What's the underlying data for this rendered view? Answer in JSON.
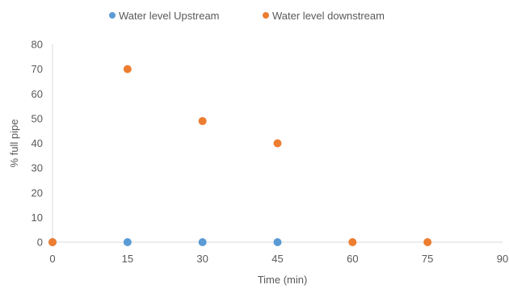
{
  "chart_data": {
    "type": "scatter",
    "title": "",
    "xlabel": "Time (min)",
    "ylabel": "% full pipe",
    "xlim": [
      0,
      90
    ],
    "ylim": [
      0,
      80
    ],
    "x_ticks": [
      0,
      15,
      30,
      45,
      60,
      75,
      90
    ],
    "y_ticks": [
      0,
      10,
      20,
      30,
      40,
      50,
      60,
      70,
      80
    ],
    "grid": false,
    "legend_position": "top",
    "series": [
      {
        "name": "Water level Upstream",
        "color": "#5B9BD5",
        "points": [
          {
            "x": 0,
            "y": 0
          },
          {
            "x": 15,
            "y": 0
          },
          {
            "x": 30,
            "y": 0
          },
          {
            "x": 45,
            "y": 0
          }
        ]
      },
      {
        "name": "Water level downstream",
        "color": "#ED7D31",
        "points": [
          {
            "x": 0,
            "y": 0
          },
          {
            "x": 15,
            "y": 70
          },
          {
            "x": 30,
            "y": 49
          },
          {
            "x": 45,
            "y": 40
          },
          {
            "x": 60,
            "y": 0
          },
          {
            "x": 75,
            "y": 0
          }
        ]
      }
    ]
  }
}
